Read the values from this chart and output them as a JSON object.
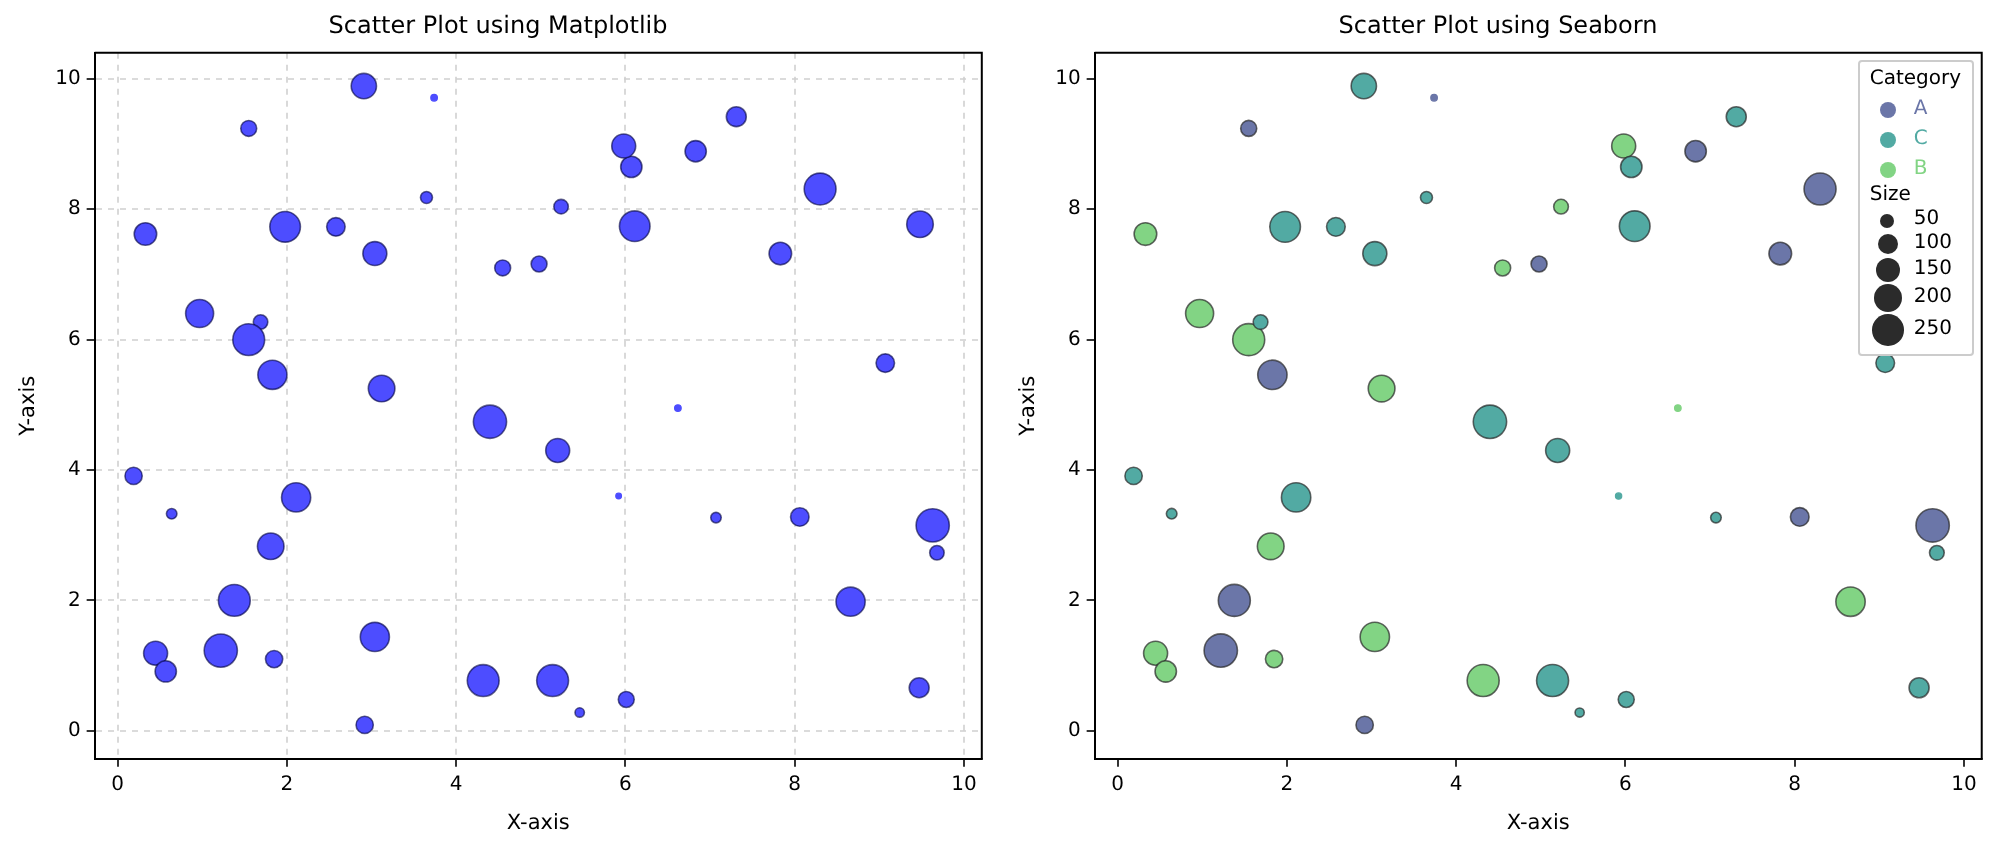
{
  "chart_data": [
    {
      "type": "bubble",
      "title": "Scatter Plot using Matplotlib",
      "xlabel": "X-axis",
      "ylabel": "Y-axis",
      "xlim": [
        -0.27,
        10.21
      ],
      "ylim": [
        -0.43,
        10.4
      ],
      "xticks": [
        0,
        2,
        4,
        6,
        8,
        10
      ],
      "yticks": [
        0,
        2,
        4,
        6,
        8,
        10
      ],
      "grid": true,
      "series": [
        {
          "color": "#4d4dff",
          "x": [
            3.74,
            1.55,
            1.83,
            1.38,
            1.22,
            2.92,
            4.98,
            6.83,
            8.3,
            7.83,
            9.48,
            8.06,
            9.63,
            2.91,
            3.65,
            1.98,
            2.58,
            3.04,
            1.69,
            4.4,
            0.19,
            0.64,
            2.11,
            6.07,
            6.11,
            7.31,
            9.07,
            5.2,
            5.92,
            7.07,
            9.68,
            5.14,
            6.01,
            5.46,
            9.47,
            0.33,
            4.55,
            0.97,
            1.55,
            3.12,
            1.81,
            0.45,
            0.57,
            1.85,
            3.04,
            4.32,
            5.24,
            5.98,
            6.62,
            8.66
          ],
          "values": [
            9.71,
            9.24,
            5.46,
            2.0,
            1.23,
            0.09,
            7.16,
            8.89,
            8.31,
            7.32,
            7.77,
            3.28,
            3.15,
            9.89,
            8.18,
            7.73,
            7.73,
            7.32,
            6.27,
            4.74,
            3.91,
            3.33,
            3.58,
            8.65,
            7.74,
            9.42,
            5.64,
            4.3,
            3.6,
            3.27,
            2.73,
            0.77,
            0.48,
            0.28,
            0.66,
            7.62,
            7.1,
            6.4,
            6.0,
            5.25,
            2.83,
            1.19,
            0.91,
            1.1,
            1.44,
            0.77,
            8.04,
            8.97,
            4.95,
            1.98
          ],
          "sizes": [
            0.04,
            0.23,
            0.77,
            0.92,
            1,
            0.27,
            0.23,
            0.41,
            0.92,
            0.46,
            0.64,
            0.31,
            1,
            0.58,
            0.13,
            0.85,
            0.31,
            0.52,
            0.19,
            1,
            0.27,
            0.1,
            0.77,
            0.41,
            0.85,
            0.36,
            0.31,
            0.52,
            0.03,
            0.1,
            0.19,
            0.92,
            0.23,
            0.08,
            0.36,
            0.46,
            0.23,
            0.71,
            0.92,
            0.64,
            0.64,
            0.52,
            0.41,
            0.27,
            0.77,
            0.92,
            0.19,
            0.52,
            0.04,
            0.77
          ]
        }
      ]
    },
    {
      "type": "bubble",
      "title": "Scatter Plot using Seaborn",
      "xlabel": "X-axis",
      "ylabel": "Y-axis",
      "xlim": [
        -0.27,
        10.21
      ],
      "ylim": [
        -0.43,
        10.4
      ],
      "xticks": [
        0,
        2,
        4,
        6,
        8,
        10
      ],
      "yticks": [
        0,
        2,
        4,
        6,
        8,
        10
      ],
      "legend": "top right",
      "legend_title": "Category",
      "annotations": [
        "Size"
      ],
      "size_legend": [
        50,
        100,
        150,
        200,
        250
      ],
      "series": [
        {
          "name": "A",
          "color": "#6b76a8",
          "x": [
            3.74,
            1.55,
            1.83,
            1.38,
            1.22,
            2.92,
            4.98,
            6.83,
            8.3,
            7.83,
            8.06,
            9.63
          ],
          "values": [
            9.71,
            9.24,
            5.46,
            2.0,
            1.23,
            0.09,
            7.16,
            8.89,
            8.31,
            7.32,
            3.28,
            3.15
          ],
          "sizes": [
            11,
            64,
            215,
            256,
            278,
            75,
            64,
            114,
            256,
            128,
            87,
            278
          ]
        },
        {
          "name": "C",
          "color": "#52aaa3",
          "x": [
            2.91,
            3.65,
            1.98,
            2.58,
            3.04,
            1.69,
            4.4,
            0.19,
            0.64,
            2.11,
            6.07,
            6.11,
            7.31,
            9.07,
            5.2,
            5.92,
            7.07,
            9.68,
            5.14,
            6.01,
            5.46,
            9.47
          ],
          "values": [
            9.89,
            8.18,
            7.73,
            7.73,
            7.32,
            6.27,
            4.74,
            3.91,
            3.33,
            3.58,
            8.65,
            7.74,
            9.42,
            5.64,
            4.3,
            3.6,
            3.27,
            2.73,
            0.77,
            0.48,
            0.28,
            0.66
          ],
          "sizes": [
            160,
            36,
            235,
            87,
            144,
            54,
            278,
            75,
            28,
            215,
            114,
            235,
            100,
            87,
            144,
            10,
            28,
            54,
            256,
            64,
            21,
            100
          ]
        },
        {
          "name": "B",
          "color": "#82d484",
          "x": [
            0.33,
            4.55,
            0.97,
            1.55,
            3.12,
            1.81,
            0.45,
            0.57,
            1.85,
            3.04,
            4.32,
            5.24,
            5.98,
            6.62,
            8.66
          ],
          "values": [
            7.62,
            7.1,
            6.4,
            6.0,
            5.25,
            2.83,
            1.19,
            0.91,
            1.1,
            1.44,
            0.77,
            8.04,
            8.97,
            4.95,
            1.98
          ],
          "sizes": [
            128,
            64,
            196,
            256,
            178,
            178,
            144,
            114,
            75,
            215,
            256,
            54,
            144,
            11,
            215
          ]
        }
      ]
    }
  ]
}
